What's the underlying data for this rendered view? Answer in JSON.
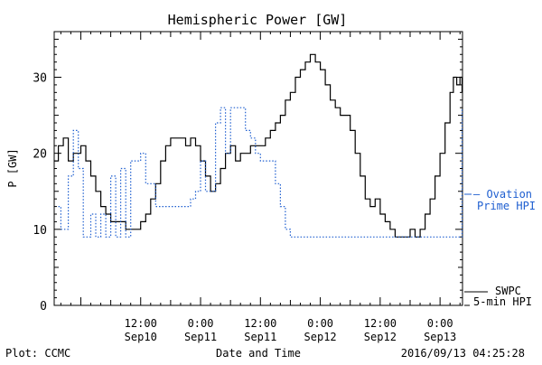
{
  "chart_data": {
    "type": "line",
    "title": "Hemispheric Power [GW]",
    "xlabel": "Date and Time",
    "ylabel": "P [GW]",
    "ylim": [
      0,
      36
    ],
    "xlim": [
      "2016-09-09 18:40",
      "2016-09-13 04:30"
    ],
    "y_ticks": [
      0,
      10,
      20,
      30
    ],
    "x_ticks": [
      {
        "time": "2016-09-10 12:00",
        "line1": "12:00",
        "line2": "Sep10"
      },
      {
        "time": "2016-09-11 00:00",
        "line1": "0:00",
        "line2": "Sep11"
      },
      {
        "time": "2016-09-11 12:00",
        "line1": "12:00",
        "line2": "Sep11"
      },
      {
        "time": "2016-09-12 00:00",
        "line1": "0:00",
        "line2": "Sep12"
      },
      {
        "time": "2016-09-12 12:00",
        "line1": "12:00",
        "line2": "Sep12"
      },
      {
        "time": "2016-09-13 00:00",
        "line1": "0:00",
        "line2": "Sep13"
      }
    ],
    "grid": false,
    "legend_position": "right",
    "series": [
      {
        "name": "SWPC 5-min HPI",
        "label_lines": [
          "SWPC",
          "5-min HPI"
        ],
        "color": "#000000",
        "style": "solid",
        "points": [
          [
            "2016-09-09 18:40",
            19
          ],
          [
            "2016-09-09 19:30",
            21
          ],
          [
            "2016-09-09 20:30",
            22
          ],
          [
            "2016-09-09 21:30",
            19
          ],
          [
            "2016-09-09 22:30",
            20
          ],
          [
            "2016-09-10 00:00",
            21
          ],
          [
            "2016-09-10 01:00",
            19
          ],
          [
            "2016-09-10 02:00",
            17
          ],
          [
            "2016-09-10 03:00",
            15
          ],
          [
            "2016-09-10 04:00",
            13
          ],
          [
            "2016-09-10 05:00",
            12
          ],
          [
            "2016-09-10 06:00",
            11
          ],
          [
            "2016-09-10 08:00",
            11
          ],
          [
            "2016-09-10 09:00",
            10
          ],
          [
            "2016-09-10 11:00",
            10
          ],
          [
            "2016-09-10 12:00",
            11
          ],
          [
            "2016-09-10 13:00",
            12
          ],
          [
            "2016-09-10 14:00",
            14
          ],
          [
            "2016-09-10 15:00",
            16
          ],
          [
            "2016-09-10 16:00",
            19
          ],
          [
            "2016-09-10 17:00",
            21
          ],
          [
            "2016-09-10 18:00",
            22
          ],
          [
            "2016-09-10 20:00",
            22
          ],
          [
            "2016-09-10 21:00",
            21
          ],
          [
            "2016-09-10 22:00",
            22
          ],
          [
            "2016-09-10 23:00",
            21
          ],
          [
            "2016-09-11 00:00",
            19
          ],
          [
            "2016-09-11 01:00",
            17
          ],
          [
            "2016-09-11 02:00",
            15
          ],
          [
            "2016-09-11 03:00",
            16
          ],
          [
            "2016-09-11 04:00",
            18
          ],
          [
            "2016-09-11 05:00",
            20
          ],
          [
            "2016-09-11 06:00",
            21
          ],
          [
            "2016-09-11 07:00",
            19
          ],
          [
            "2016-09-11 08:00",
            20
          ],
          [
            "2016-09-11 09:00",
            20
          ],
          [
            "2016-09-11 10:00",
            21
          ],
          [
            "2016-09-11 11:00",
            21
          ],
          [
            "2016-09-11 12:00",
            21
          ],
          [
            "2016-09-11 13:00",
            22
          ],
          [
            "2016-09-11 14:00",
            23
          ],
          [
            "2016-09-11 15:00",
            24
          ],
          [
            "2016-09-11 16:00",
            25
          ],
          [
            "2016-09-11 17:00",
            27
          ],
          [
            "2016-09-11 18:00",
            28
          ],
          [
            "2016-09-11 19:00",
            30
          ],
          [
            "2016-09-11 20:00",
            31
          ],
          [
            "2016-09-11 21:00",
            32
          ],
          [
            "2016-09-11 22:00",
            33
          ],
          [
            "2016-09-11 23:00",
            32
          ],
          [
            "2016-09-12 00:00",
            31
          ],
          [
            "2016-09-12 01:00",
            29
          ],
          [
            "2016-09-12 02:00",
            27
          ],
          [
            "2016-09-12 03:00",
            26
          ],
          [
            "2016-09-12 04:00",
            25
          ],
          [
            "2016-09-12 05:00",
            25
          ],
          [
            "2016-09-12 06:00",
            23
          ],
          [
            "2016-09-12 07:00",
            20
          ],
          [
            "2016-09-12 08:00",
            17
          ],
          [
            "2016-09-12 09:00",
            14
          ],
          [
            "2016-09-12 10:00",
            13
          ],
          [
            "2016-09-12 11:00",
            14
          ],
          [
            "2016-09-12 12:00",
            12
          ],
          [
            "2016-09-12 13:00",
            11
          ],
          [
            "2016-09-12 14:00",
            10
          ],
          [
            "2016-09-12 15:00",
            9
          ],
          [
            "2016-09-12 16:00",
            9
          ],
          [
            "2016-09-12 17:00",
            9
          ],
          [
            "2016-09-12 18:00",
            10
          ],
          [
            "2016-09-12 19:00",
            9
          ],
          [
            "2016-09-12 20:00",
            10
          ],
          [
            "2016-09-12 21:00",
            12
          ],
          [
            "2016-09-12 22:00",
            14
          ],
          [
            "2016-09-12 23:00",
            17
          ],
          [
            "2016-09-13 00:00",
            20
          ],
          [
            "2016-09-13 01:00",
            24
          ],
          [
            "2016-09-13 02:00",
            28
          ],
          [
            "2016-09-13 02:40",
            30
          ],
          [
            "2016-09-13 03:20",
            29
          ],
          [
            "2016-09-13 04:00",
            30
          ],
          [
            "2016-09-13 04:25",
            28
          ]
        ]
      },
      {
        "name": "Ovation Prime HPI",
        "label_lines": [
          "– Ovation",
          "Prime HPI"
        ],
        "color": "#1f5fd0",
        "style": "dotted",
        "points": [
          [
            "2016-09-09 19:30",
            13
          ],
          [
            "2016-09-09 20:00",
            10
          ],
          [
            "2016-09-09 21:30",
            17
          ],
          [
            "2016-09-09 22:30",
            23
          ],
          [
            "2016-09-09 23:30",
            18
          ],
          [
            "2016-09-10 00:30",
            9
          ],
          [
            "2016-09-10 02:00",
            12
          ],
          [
            "2016-09-10 03:00",
            9
          ],
          [
            "2016-09-10 04:00",
            12
          ],
          [
            "2016-09-10 05:00",
            9
          ],
          [
            "2016-09-10 06:00",
            17
          ],
          [
            "2016-09-10 07:00",
            9
          ],
          [
            "2016-09-10 08:00",
            18
          ],
          [
            "2016-09-10 09:00",
            9
          ],
          [
            "2016-09-10 10:00",
            19
          ],
          [
            "2016-09-10 12:00",
            20
          ],
          [
            "2016-09-10 13:00",
            16
          ],
          [
            "2016-09-10 15:00",
            13
          ],
          [
            "2016-09-10 20:00",
            13
          ],
          [
            "2016-09-10 22:00",
            14
          ],
          [
            "2016-09-10 23:00",
            15
          ],
          [
            "2016-09-11 00:00",
            19
          ],
          [
            "2016-09-11 01:00",
            15
          ],
          [
            "2016-09-11 03:00",
            24
          ],
          [
            "2016-09-11 04:00",
            26
          ],
          [
            "2016-09-11 05:00",
            20
          ],
          [
            "2016-09-11 06:00",
            26
          ],
          [
            "2016-09-11 08:00",
            26
          ],
          [
            "2016-09-11 09:00",
            23
          ],
          [
            "2016-09-11 10:00",
            22
          ],
          [
            "2016-09-11 11:00",
            20
          ],
          [
            "2016-09-11 12:00",
            19
          ],
          [
            "2016-09-11 13:00",
            19
          ],
          [
            "2016-09-11 15:00",
            16
          ],
          [
            "2016-09-11 16:00",
            13
          ],
          [
            "2016-09-11 17:00",
            10
          ],
          [
            "2016-09-11 18:00",
            9
          ],
          [
            "2016-09-11 20:00",
            9
          ],
          [
            "2016-09-11 21:00",
            9
          ],
          [
            "2016-09-11 22:00",
            9
          ],
          [
            "2016-09-11 23:00",
            9
          ],
          [
            "2016-09-12 00:00",
            9
          ],
          [
            "2016-09-12 04:00",
            9
          ],
          [
            "2016-09-12 05:00",
            9
          ],
          [
            "2016-09-12 06:00",
            9
          ],
          [
            "2016-09-12 08:00",
            9
          ],
          [
            "2016-09-12 10:00",
            9
          ],
          [
            "2016-09-12 11:00",
            9
          ],
          [
            "2016-09-12 13:00",
            9
          ],
          [
            "2016-09-12 14:00",
            9
          ],
          [
            "2016-09-12 15:00",
            9
          ],
          [
            "2016-09-12 16:00",
            9
          ],
          [
            "2016-09-12 18:00",
            9
          ],
          [
            "2016-09-12 20:00",
            9
          ],
          [
            "2016-09-12 22:00",
            9
          ],
          [
            "2016-09-13 00:00",
            9
          ],
          [
            "2016-09-13 04:25",
            26
          ]
        ]
      }
    ],
    "footer": {
      "left": "Plot: CCMC",
      "center": "Date and Time",
      "right": "2016/09/13 04:25:28"
    }
  }
}
